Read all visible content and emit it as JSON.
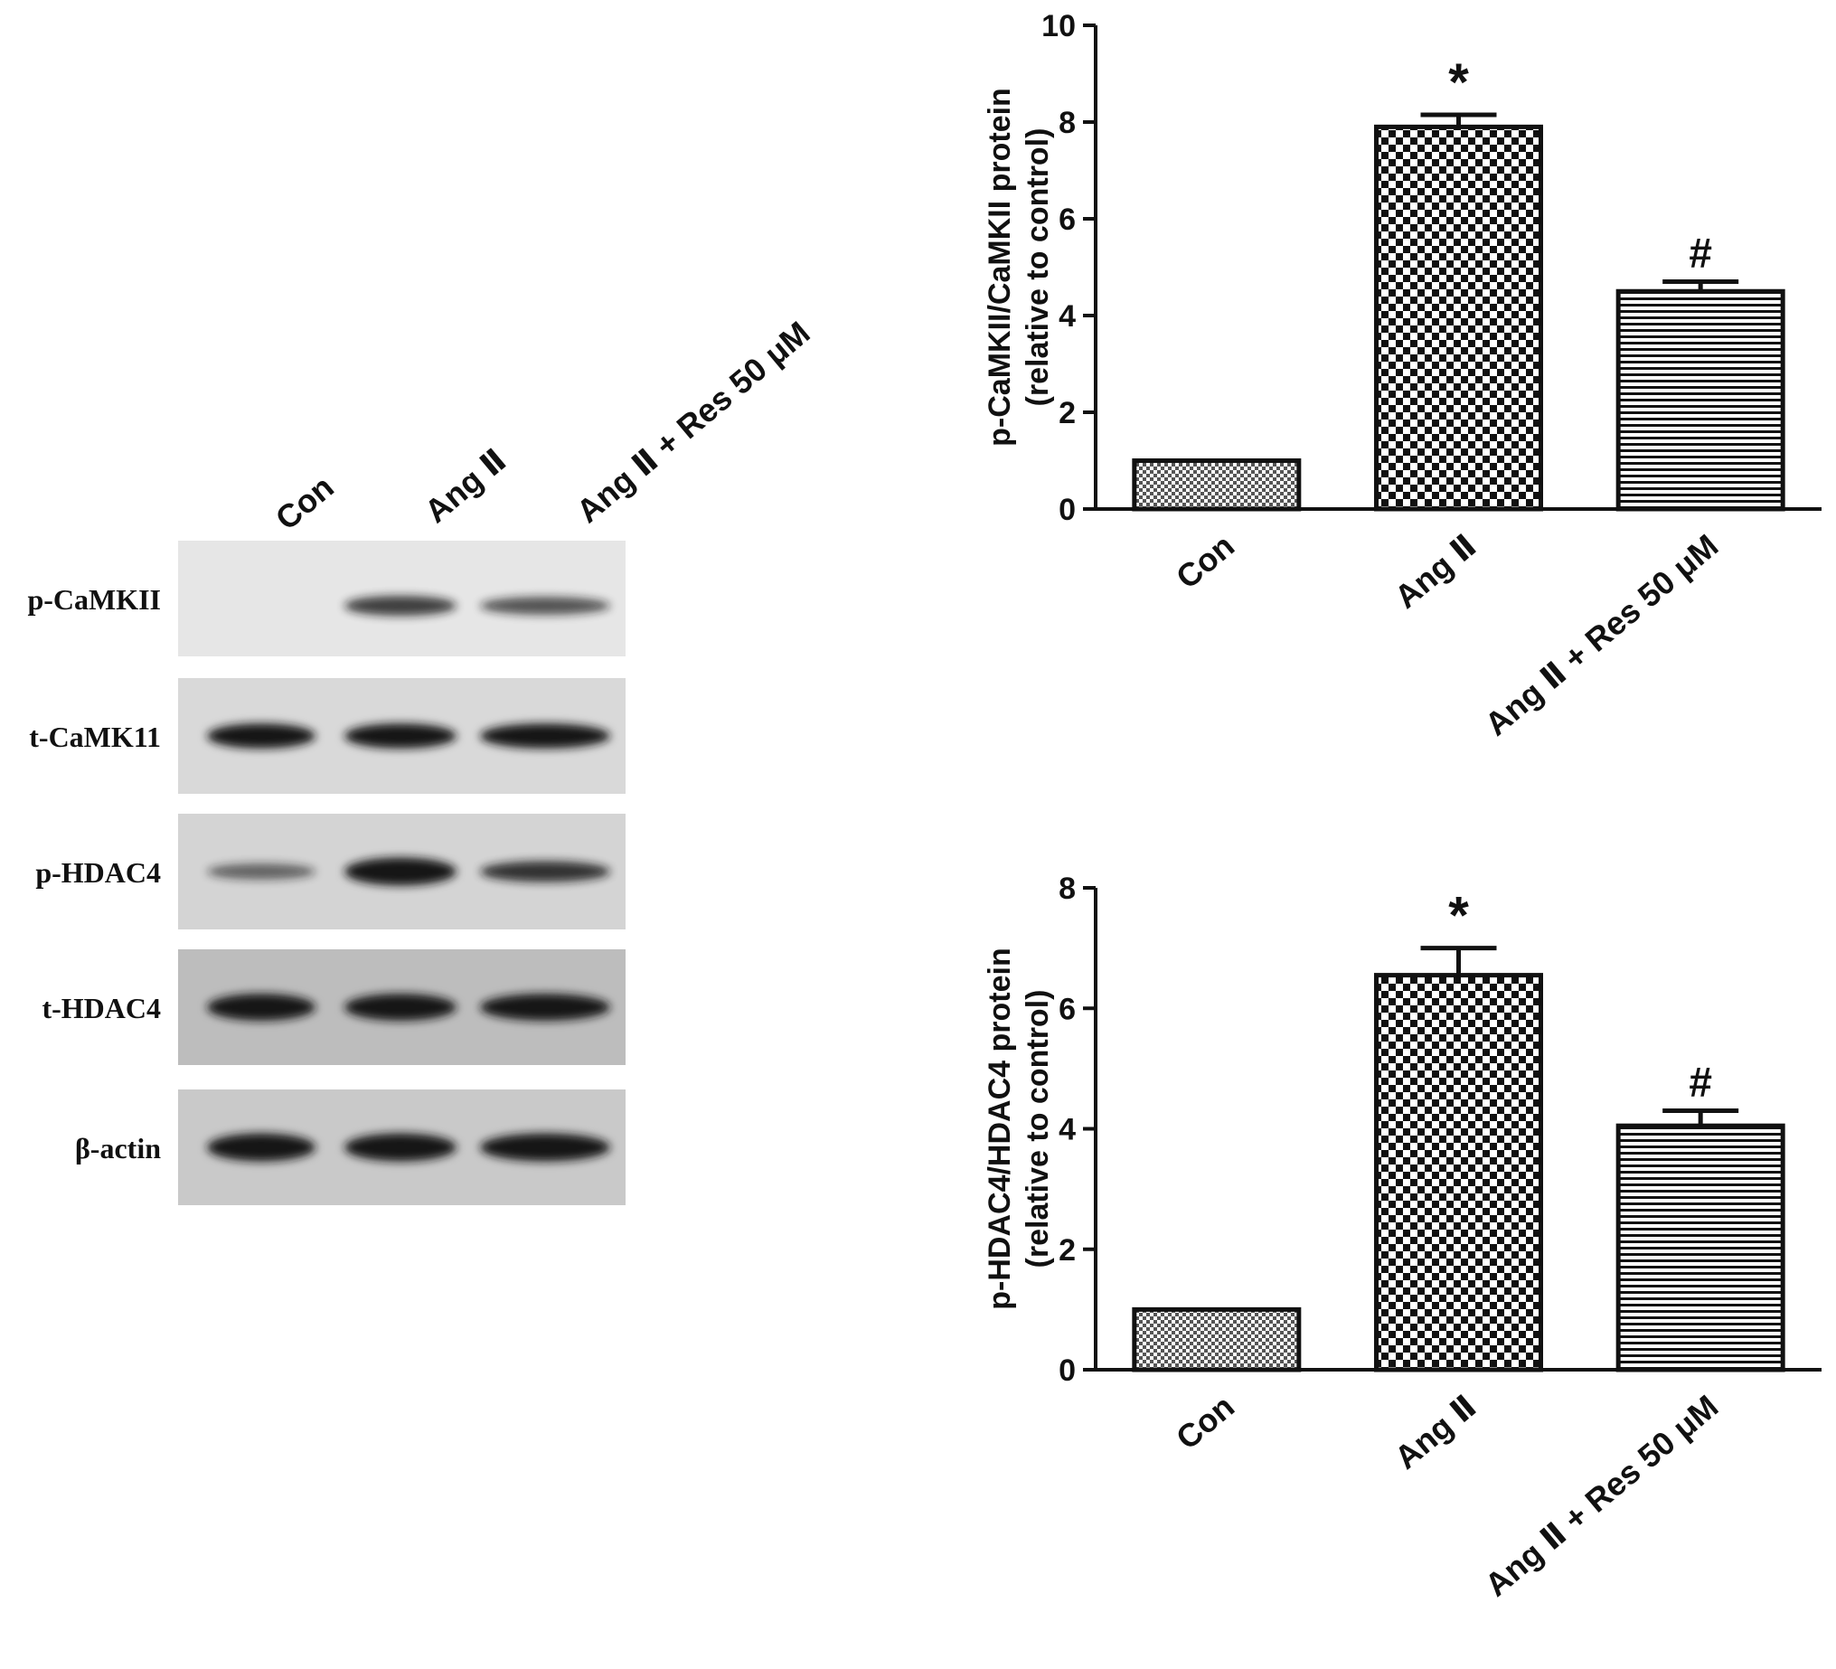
{
  "western_blot": {
    "lane_labels": [
      "Con",
      "Ang Ⅱ",
      "Ang Ⅱ + Res 50 μM"
    ],
    "rows": [
      {
        "label": "p-CaMKII",
        "band_intensity": [
          0.0,
          0.55,
          0.45
        ],
        "background": "#e6e6e6"
      },
      {
        "label": "t-CaMK11",
        "band_intensity": [
          0.8,
          0.8,
          0.8
        ],
        "background": "#d9d9d9"
      },
      {
        "label": "p-HDAC4",
        "band_intensity": [
          0.35,
          0.95,
          0.6
        ],
        "background": "#d4d4d4"
      },
      {
        "label": "t-HDAC4",
        "band_intensity": [
          0.9,
          0.9,
          0.9
        ],
        "background": "#bdbdbd"
      },
      {
        "label": "β-actin",
        "band_intensity": [
          0.95,
          0.95,
          0.95
        ],
        "background": "#c9c9c9"
      }
    ]
  },
  "chart_data": [
    {
      "type": "bar",
      "categories": [
        "Con",
        "Ang Ⅱ",
        "Ang Ⅱ + Res 50 μM"
      ],
      "values": [
        1.0,
        7.9,
        4.5
      ],
      "errors": [
        0,
        0.25,
        0.2
      ],
      "annotations": [
        "",
        "*",
        "#"
      ],
      "patterns": [
        "fine-check",
        "checker",
        "horizontal-lines"
      ],
      "ylabel": "p-CaMKII/CaMKII protein",
      "ylabel2": "(relative to control)",
      "ylim": [
        0,
        10
      ],
      "yticks": [
        0,
        2,
        4,
        6,
        8,
        10
      ],
      "grid": false
    },
    {
      "type": "bar",
      "categories": [
        "Con",
        "Ang Ⅱ",
        "Ang Ⅱ + Res 50 μM"
      ],
      "values": [
        1.0,
        6.55,
        4.05
      ],
      "errors": [
        0,
        0.45,
        0.25
      ],
      "annotations": [
        "",
        "*",
        "#"
      ],
      "patterns": [
        "fine-check",
        "checker",
        "horizontal-lines"
      ],
      "ylabel": "p-HDAC4/HDAC4 protein",
      "ylabel2": "(relative to control)",
      "ylim": [
        0,
        8
      ],
      "yticks": [
        0,
        2,
        4,
        6,
        8
      ],
      "grid": false
    }
  ],
  "colors": {
    "ink": "#111111",
    "bar_fill": "#ffffff",
    "band": "#141414"
  }
}
